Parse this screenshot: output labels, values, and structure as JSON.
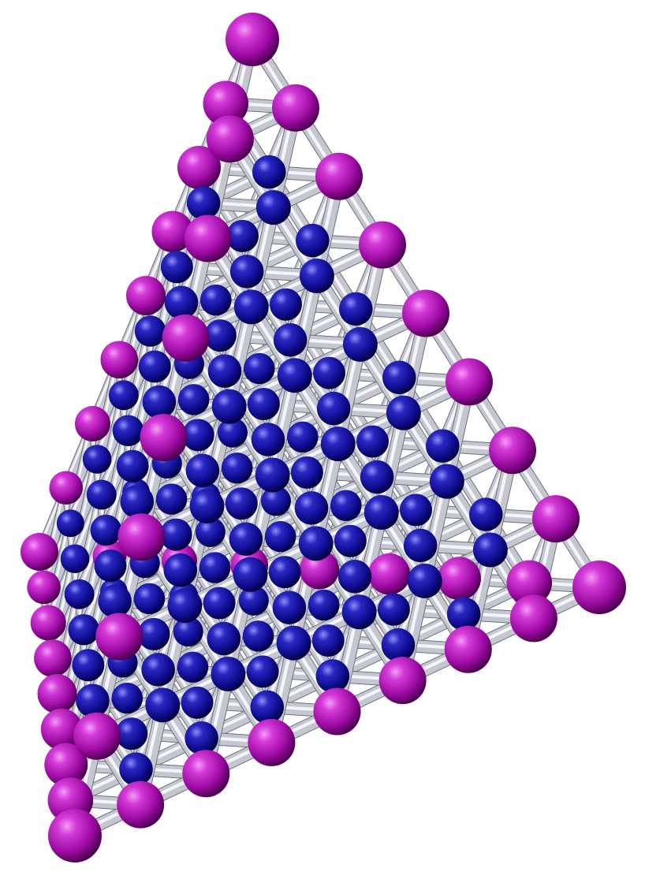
{
  "scene": {
    "subject": "tetrahedral-cluster",
    "background_color": "#ffffff",
    "rod_color": "#c4c6d0",
    "surface_atom_color": "#b00cb4",
    "inner_atom_color": "#12109a",
    "edge_atoms_per_side": 9
  }
}
